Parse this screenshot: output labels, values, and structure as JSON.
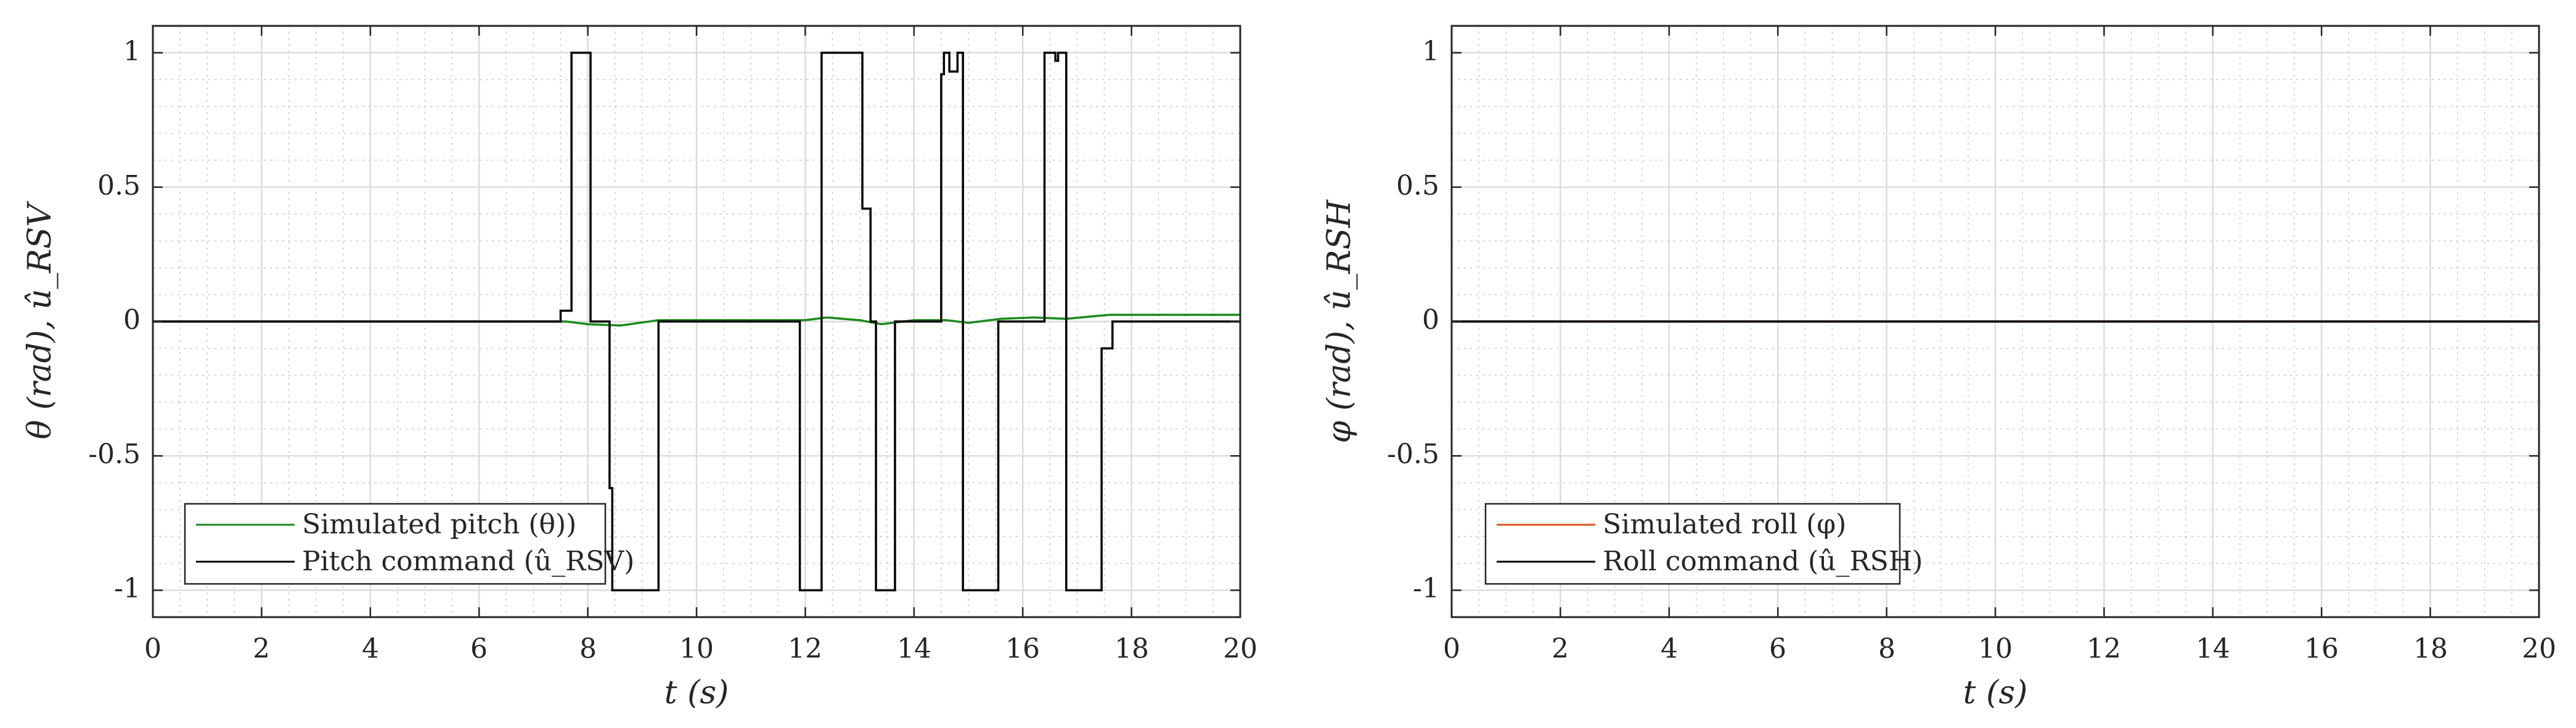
{
  "chart_data": [
    {
      "type": "line",
      "xlabel": "t (s)",
      "ylabel": "θ (rad), û_RSV",
      "xlim": [
        0,
        20
      ],
      "ylim": [
        -1.1,
        1.1
      ],
      "xticks": [
        "0",
        "2",
        "4",
        "6",
        "8",
        "10",
        "12",
        "14",
        "16",
        "18",
        "20"
      ],
      "yticks": [
        "1",
        "0.5",
        "0",
        "-0.5",
        "-1"
      ],
      "grid": true,
      "minor_grid": true,
      "legend_position": "bottom-left",
      "series": [
        {
          "name": "Simulated pitch (θ))",
          "color": "#1a8a1a",
          "x": [
            0,
            7.6,
            8.0,
            8.6,
            9.3,
            10.0,
            12.0,
            12.4,
            13.0,
            13.4,
            14.0,
            14.6,
            15.0,
            15.6,
            16.2,
            16.8,
            17.6,
            18.0,
            20.0
          ],
          "y": [
            0,
            0,
            -0.01,
            -0.015,
            0.005,
            0.005,
            0.005,
            0.015,
            0.005,
            -0.01,
            0.005,
            0.005,
            -0.005,
            0.01,
            0.015,
            0.01,
            0.025,
            0.025,
            0.025
          ]
        },
        {
          "name": "Pitch command (û_RSV)",
          "color": "#000000",
          "x": [
            0,
            7.5,
            7.5,
            7.65,
            7.65,
            7.7,
            7.7,
            8.05,
            8.05,
            8.4,
            8.4,
            8.45,
            8.45,
            8.55,
            8.55,
            9.3,
            9.3,
            11.9,
            11.9,
            12.3,
            12.3,
            12.4,
            12.4,
            12.5,
            12.5,
            13.05,
            13.05,
            13.1,
            13.1,
            13.2,
            13.2,
            13.3,
            13.3,
            13.65,
            13.65,
            14.5,
            14.5,
            14.55,
            14.55,
            14.65,
            14.65,
            14.8,
            14.8,
            14.9,
            14.9,
            15.55,
            15.55,
            16.4,
            16.4,
            16.6,
            16.6,
            16.65,
            16.65,
            16.8,
            16.8,
            17.45,
            17.45,
            17.55,
            17.55,
            17.65,
            17.65,
            20.0
          ],
          "y": [
            0,
            0,
            0.04,
            0.04,
            0.04,
            0.04,
            1,
            1,
            0,
            0,
            -0.62,
            -0.62,
            -1,
            -1,
            -1,
            -1,
            0,
            0,
            -1,
            -1,
            1,
            1,
            1,
            1,
            1,
            1,
            0.42,
            0.42,
            0.42,
            0.42,
            0,
            0,
            -1,
            -1,
            0,
            0,
            0.92,
            0.92,
            1,
            1,
            0.93,
            0.93,
            1,
            1,
            -1,
            -1,
            0,
            0,
            1,
            1,
            0.97,
            0.97,
            1,
            1,
            -1,
            -1,
            -0.1,
            -0.1,
            -0.1,
            -0.1,
            0,
            0
          ]
        }
      ]
    },
    {
      "type": "line",
      "xlabel": "t (s)",
      "ylabel": "φ (rad), û_RSH",
      "xlim": [
        0,
        20
      ],
      "ylim": [
        -1.1,
        1.1
      ],
      "xticks": [
        "0",
        "2",
        "4",
        "6",
        "8",
        "10",
        "12",
        "14",
        "16",
        "18",
        "20"
      ],
      "yticks": [
        "1",
        "0.5",
        "0",
        "-0.5",
        "-1"
      ],
      "grid": true,
      "minor_grid": true,
      "legend_position": "bottom-left",
      "series": [
        {
          "name": "Simulated roll (φ)",
          "color": "#d95319",
          "x": [
            0,
            20
          ],
          "y": [
            0,
            0
          ]
        },
        {
          "name": "Roll command (û_RSH)",
          "color": "#000000",
          "x": [
            0,
            20
          ],
          "y": [
            0,
            0
          ]
        }
      ]
    }
  ]
}
